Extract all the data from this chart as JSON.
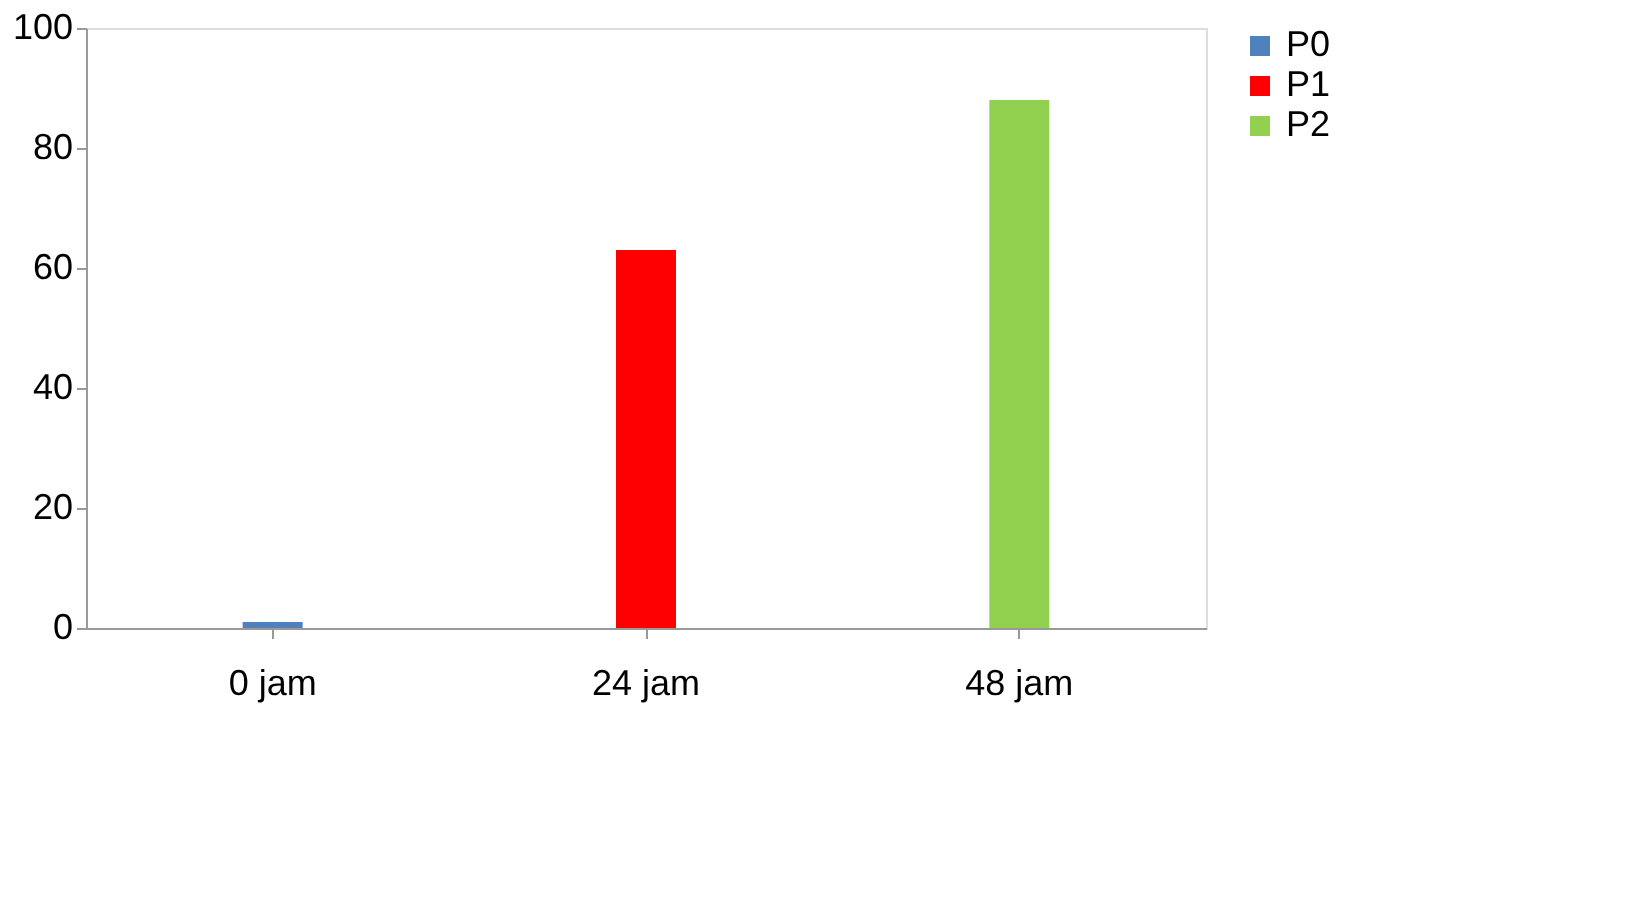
{
  "chart_data": {
    "type": "bar",
    "categories": [
      "0 jam",
      "24 jam",
      "48 jam"
    ],
    "series": [
      {
        "name": "P0",
        "color": "#4f81bd",
        "values": [
          1,
          null,
          null
        ]
      },
      {
        "name": "P1",
        "color": "#ff0000",
        "values": [
          null,
          63,
          null
        ]
      },
      {
        "name": "P2",
        "color": "#92d050",
        "values": [
          null,
          null,
          88
        ]
      }
    ],
    "ylim": [
      0,
      100
    ],
    "yticks": [
      0,
      20,
      40,
      60,
      80,
      100
    ],
    "grid": false,
    "legend": "right"
  }
}
